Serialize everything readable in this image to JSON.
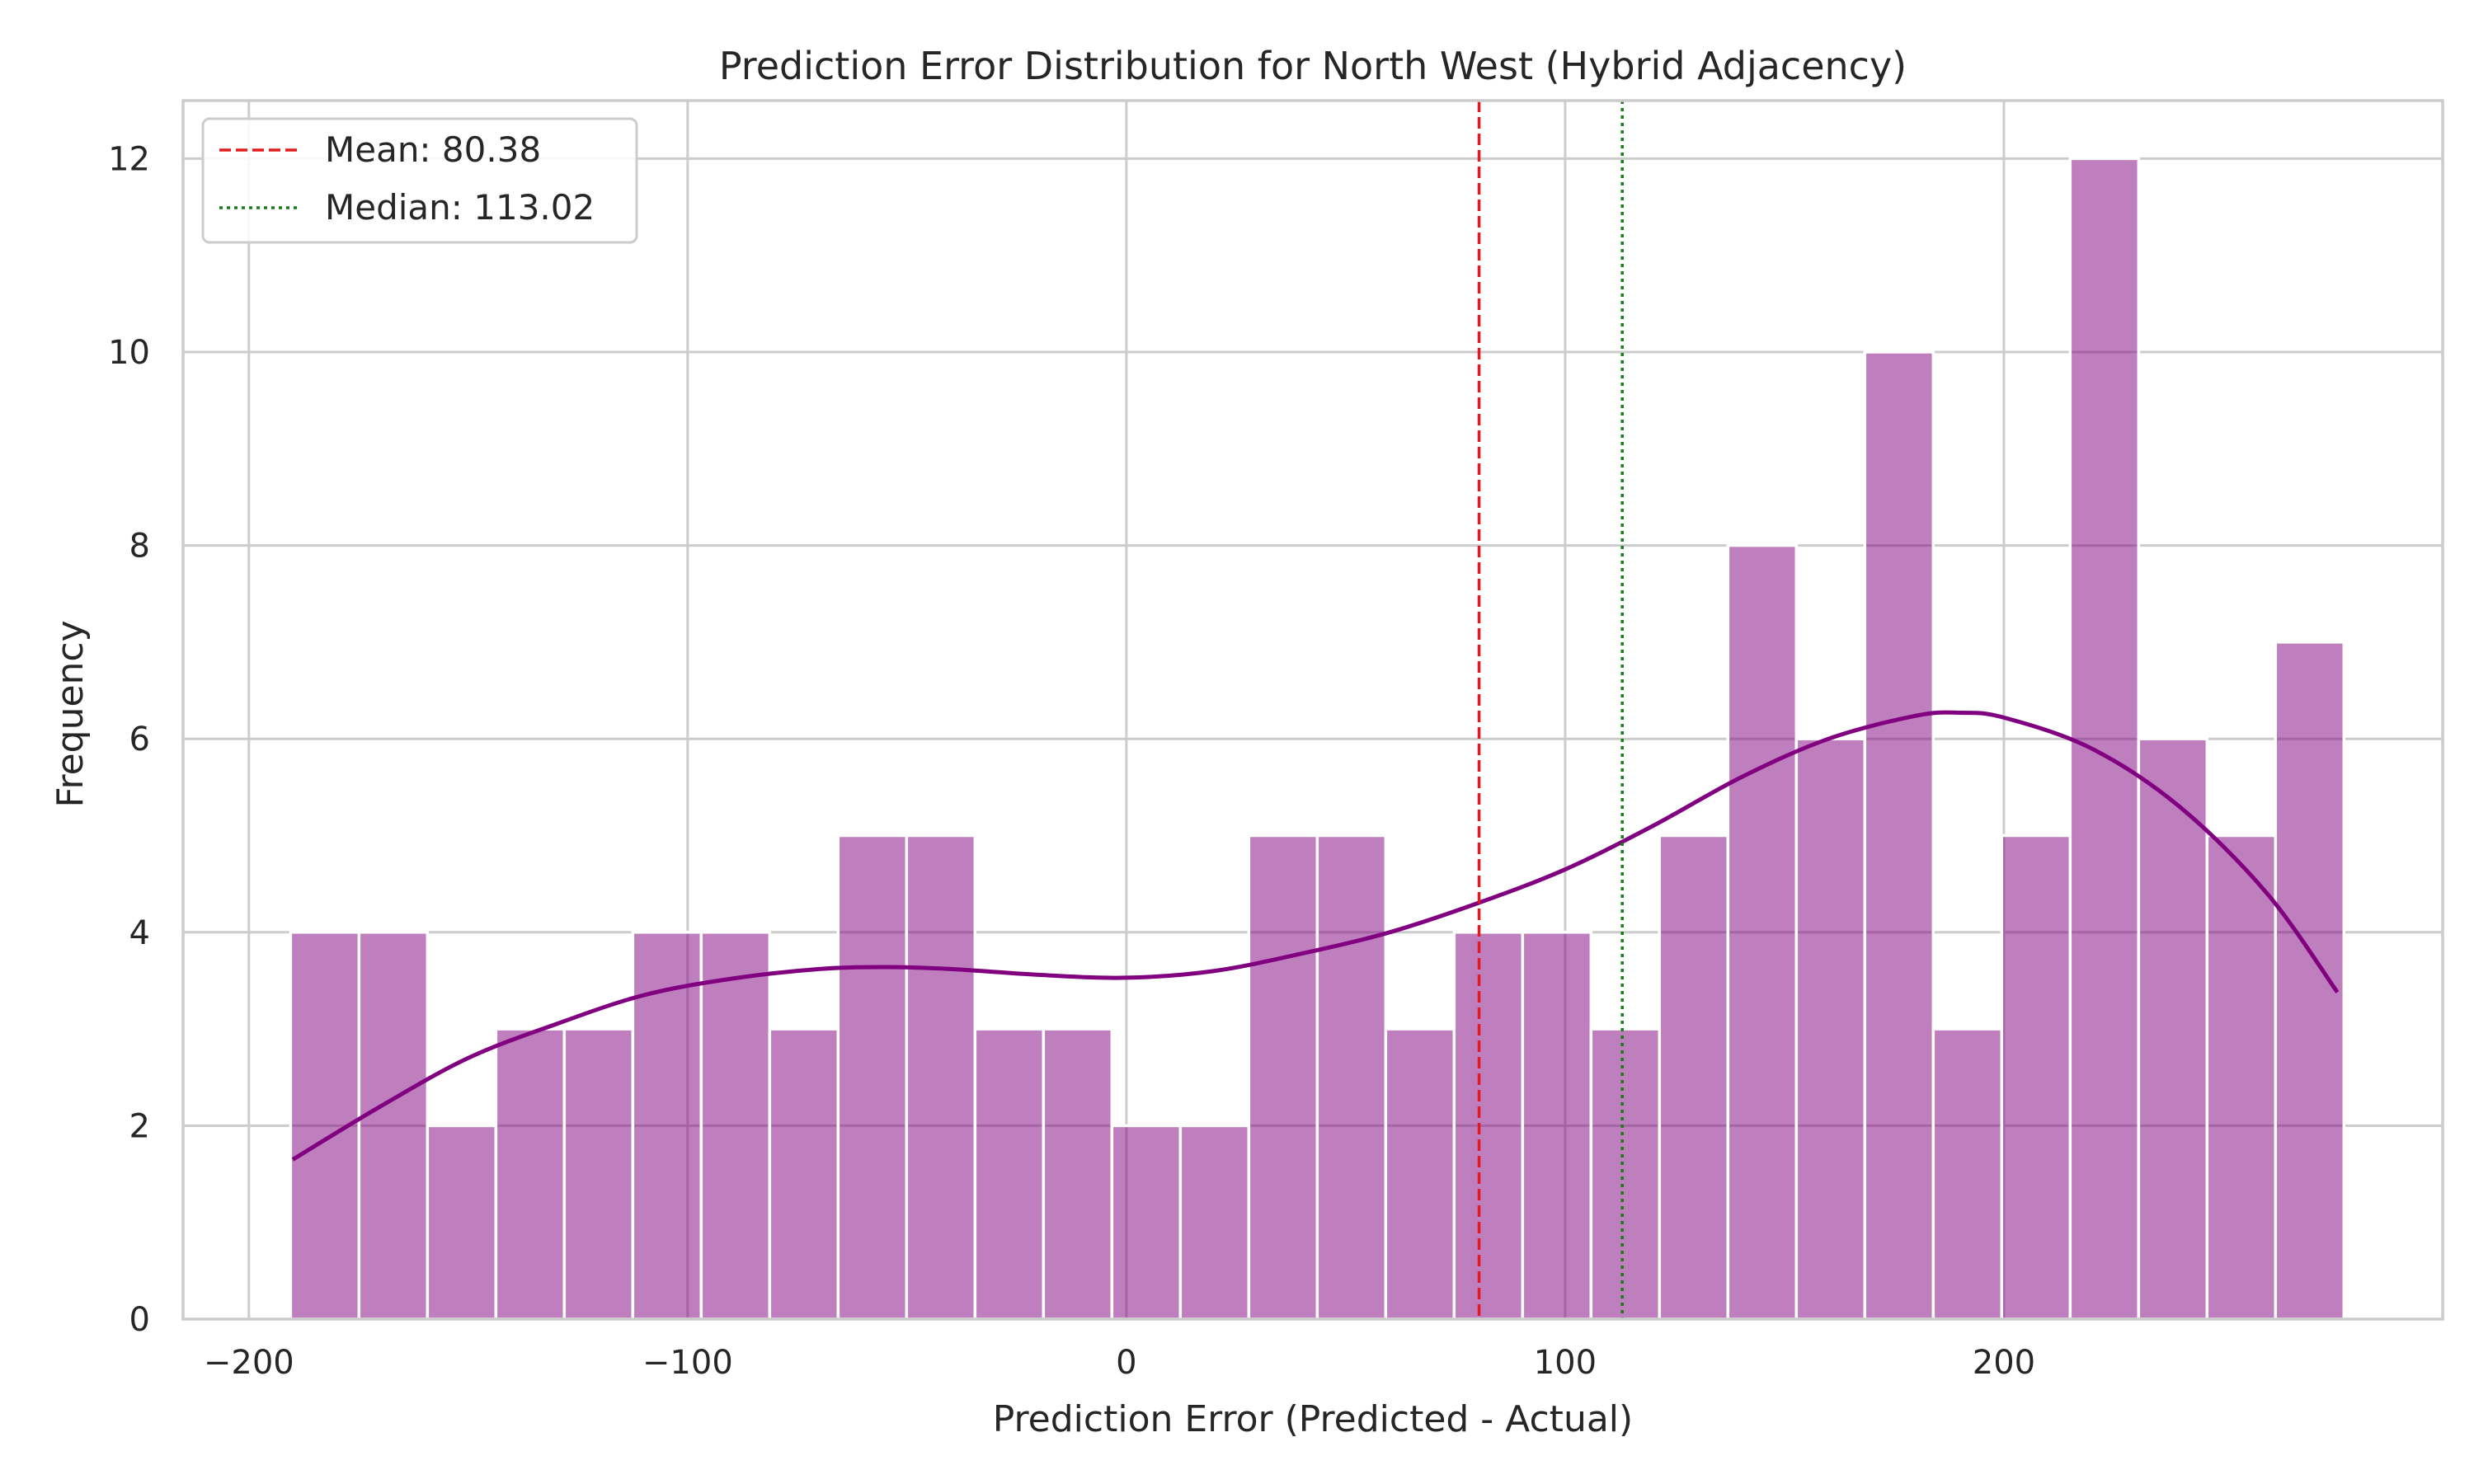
{
  "chart_data": {
    "type": "bar",
    "title": "Prediction Error Distribution for North West (Hybrid Adjacency)",
    "xlabel": "Prediction Error (Predicted - Actual)",
    "ylabel": "Frequency",
    "xlim": [
      -215,
      300
    ],
    "ylim": [
      0,
      12.6
    ],
    "x_ticks": [
      -200,
      -100,
      0,
      100,
      200
    ],
    "x_tick_labels": [
      "−200",
      "−100",
      "0",
      "100",
      "200"
    ],
    "y_ticks": [
      0,
      2,
      4,
      6,
      8,
      10,
      12
    ],
    "y_tick_labels": [
      "0",
      "2",
      "4",
      "6",
      "8",
      "10",
      "12"
    ],
    "grid": true,
    "legend_position": "top-left",
    "bin_start": -190.5,
    "bin_width": 15.6,
    "values": [
      4,
      4,
      2,
      3,
      3,
      4,
      4,
      3,
      5,
      5,
      3,
      3,
      2,
      2,
      5,
      5,
      3,
      4,
      4,
      3,
      5,
      8,
      6,
      10,
      3,
      5,
      12,
      6,
      5,
      7
    ],
    "bar_color": "#800080",
    "kde": {
      "color": "#800080",
      "x": [
        -190,
        -170,
        -150,
        -130,
        -110,
        -90,
        -70,
        -55,
        -40,
        -20,
        0,
        20,
        40,
        60,
        80,
        100,
        120,
        140,
        160,
        180,
        190,
        200,
        220,
        240,
        260,
        276
      ],
      "y": [
        1.65,
        2.2,
        2.7,
        3.05,
        3.35,
        3.52,
        3.62,
        3.64,
        3.62,
        3.56,
        3.53,
        3.6,
        3.78,
        4.0,
        4.3,
        4.65,
        5.1,
        5.6,
        6.0,
        6.24,
        6.27,
        6.22,
        5.9,
        5.3,
        4.4,
        3.38
      ]
    },
    "reference_lines": [
      {
        "name": "Mean: 80.38",
        "x": 80.38,
        "color": "#e31a1c",
        "style": "dashed"
      },
      {
        "name": "Median: 113.02",
        "x": 113.02,
        "color": "#1a7a1a",
        "style": "dotted"
      }
    ]
  }
}
